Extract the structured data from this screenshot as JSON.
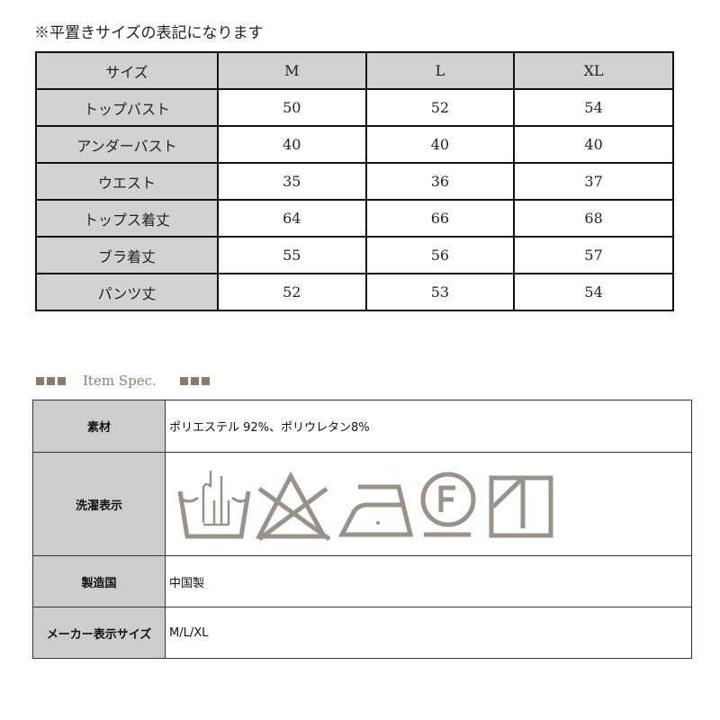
{
  "note": "※平置きサイズの表記になります",
  "size_table": {
    "headers": [
      "サイズ",
      "M",
      "L",
      "XL"
    ],
    "rows": [
      {
        "label": "トップバスト",
        "values": [
          "50",
          "52",
          "54"
        ]
      },
      {
        "label": "アンダーバスト",
        "values": [
          "40",
          "40",
          "40"
        ]
      },
      {
        "label": "ウエスト",
        "values": [
          "35",
          "36",
          "37"
        ]
      },
      {
        "label": "トップス着丈",
        "values": [
          "64",
          "66",
          "68"
        ]
      },
      {
        "label": "ブラ着丈",
        "values": [
          "55",
          "56",
          "57"
        ]
      },
      {
        "label": "パンツ丈",
        "values": [
          "52",
          "53",
          "54"
        ]
      }
    ]
  },
  "spec": {
    "title": "Item Spec.",
    "material_label": "素材",
    "material": "ポリエステル 92%、ポリウレタン8%",
    "care_label": "洗濯表示",
    "care_icons": [
      "hand-wash-icon",
      "no-bleach-icon",
      "iron-low-icon",
      "dry-clean-f-icon",
      "line-dry-shade-icon"
    ],
    "icon_color": "#9a9289",
    "origin_label": "製造国",
    "origin": "中国製",
    "maker_size_label": "メーカー表示サイズ",
    "maker_size": "M/L/XL"
  }
}
